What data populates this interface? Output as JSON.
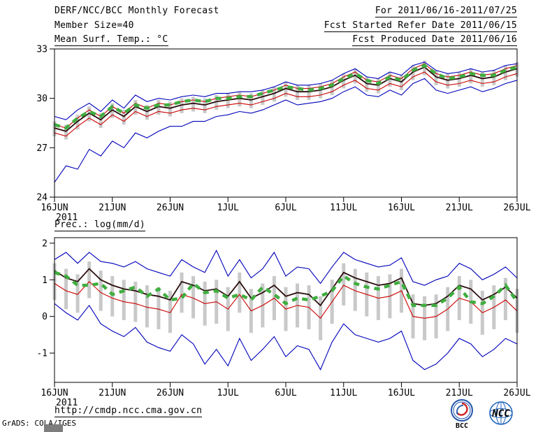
{
  "header": {
    "title": "DERF/NCC/BCC Monthly Forecast",
    "for_range": "For 2011/06/16-2011/07/25",
    "member_size": "Member Size=40",
    "refer_date": "Fcst Started Refer Date 2011/06/15",
    "produced_date": "Fcst Produced Date 2011/06/16"
  },
  "footer": {
    "url": "http://cmdp.ncc.cma.gov.cn",
    "credit": "GrADS: COLA/IGES",
    "bcc_label": "BCC",
    "ncc_label": "NCC"
  },
  "chart_data": [
    {
      "type": "line",
      "title": "Mean Surf. Temp.: °C",
      "x_tick_labels": [
        "16JUN",
        "21JUN",
        "26JUN",
        "1JUL",
        "6JUL",
        "11JUL",
        "16JUL",
        "21JUL",
        "26JUL"
      ],
      "x_tick_step": 5,
      "x_year_label": "2011",
      "ylim": [
        24,
        33
      ],
      "yticks": [
        24,
        27,
        30,
        33
      ],
      "grid": false,
      "bars": {
        "color": "#c9c9c9",
        "upper": [
          28.6,
          28.4,
          29.0,
          29.5,
          29.1,
          29.7,
          29.3,
          29.9,
          29.6,
          29.9,
          29.8,
          30.0,
          30.1,
          30.0,
          30.2,
          30.3,
          30.4,
          30.3,
          30.5,
          30.7,
          31.0,
          30.8,
          30.8,
          30.9,
          31.1,
          31.5,
          31.8,
          31.3,
          31.2,
          31.6,
          31.4,
          32.0,
          32.3,
          31.7,
          31.5,
          31.6,
          31.8,
          31.6,
          31.7,
          32.0,
          32.2
        ],
        "lower": [
          27.7,
          27.5,
          28.1,
          28.6,
          28.2,
          28.8,
          28.4,
          29.0,
          28.7,
          29.0,
          28.9,
          29.1,
          29.2,
          29.1,
          29.3,
          29.4,
          29.5,
          29.4,
          29.6,
          29.8,
          30.1,
          29.9,
          29.9,
          30.0,
          30.2,
          30.6,
          30.9,
          30.4,
          30.3,
          30.7,
          30.5,
          31.1,
          31.4,
          30.8,
          30.6,
          30.7,
          30.9,
          30.7,
          30.8,
          31.1,
          31.3
        ]
      },
      "series": [
        {
          "name": "ensemble-max",
          "color": "#0000bb",
          "width": 1.1,
          "values": [
            28.9,
            28.7,
            29.3,
            29.7,
            29.2,
            29.9,
            29.4,
            30.2,
            29.8,
            30.0,
            29.9,
            30.1,
            30.2,
            30.1,
            30.3,
            30.3,
            30.4,
            30.4,
            30.5,
            30.7,
            31.0,
            30.8,
            30.8,
            30.9,
            31.1,
            31.5,
            31.8,
            31.3,
            31.2,
            31.6,
            31.4,
            32.0,
            32.2,
            31.7,
            31.5,
            31.6,
            31.8,
            31.6,
            31.7,
            32.0,
            32.1
          ]
        },
        {
          "name": "plus-std",
          "color": "#cc0000",
          "width": 1.1,
          "values": [
            28.4,
            28.2,
            28.8,
            29.3,
            28.9,
            29.5,
            29.1,
            29.7,
            29.4,
            29.7,
            29.6,
            29.8,
            29.9,
            29.8,
            30.0,
            30.1,
            30.2,
            30.1,
            30.3,
            30.5,
            30.8,
            30.6,
            30.6,
            30.7,
            30.9,
            31.3,
            31.6,
            31.1,
            31.0,
            31.4,
            31.2,
            31.8,
            32.1,
            31.5,
            31.3,
            31.4,
            31.6,
            31.4,
            31.5,
            31.8,
            32.0
          ]
        },
        {
          "name": "ensemble-mean",
          "color": "#2b0d0d",
          "width": 1.8,
          "values": [
            28.2,
            28.0,
            28.6,
            29.1,
            28.7,
            29.3,
            28.9,
            29.5,
            29.2,
            29.5,
            29.4,
            29.6,
            29.7,
            29.6,
            29.8,
            29.9,
            30.0,
            29.9,
            30.1,
            30.3,
            30.6,
            30.4,
            30.4,
            30.5,
            30.7,
            31.1,
            31.4,
            30.9,
            30.8,
            31.2,
            31.0,
            31.6,
            31.9,
            31.3,
            31.1,
            31.2,
            31.4,
            31.2,
            31.3,
            31.6,
            31.8
          ]
        },
        {
          "name": "minus-std",
          "color": "#cc0000",
          "width": 1.1,
          "values": [
            27.9,
            27.7,
            28.3,
            28.8,
            28.4,
            29.0,
            28.6,
            29.2,
            28.9,
            29.2,
            29.1,
            29.3,
            29.4,
            29.3,
            29.5,
            29.6,
            29.7,
            29.6,
            29.8,
            30.0,
            30.3,
            30.1,
            30.1,
            30.2,
            30.4,
            30.8,
            31.1,
            30.6,
            30.5,
            30.9,
            30.7,
            31.3,
            31.6,
            31.0,
            30.8,
            30.9,
            31.1,
            30.9,
            31.0,
            31.3,
            31.5
          ]
        },
        {
          "name": "ensemble-min",
          "color": "#0000bb",
          "width": 1.1,
          "values": [
            24.9,
            25.9,
            25.7,
            26.9,
            26.5,
            27.4,
            27.0,
            27.9,
            27.6,
            28.0,
            28.3,
            28.3,
            28.6,
            28.6,
            28.9,
            29.0,
            29.2,
            29.1,
            29.3,
            29.6,
            29.9,
            29.6,
            29.7,
            29.8,
            30.0,
            30.4,
            30.7,
            30.2,
            30.1,
            30.5,
            30.2,
            30.9,
            31.2,
            30.5,
            30.3,
            30.5,
            30.7,
            30.4,
            30.6,
            30.9,
            31.1
          ]
        },
        {
          "name": "observation",
          "color": "#3fae3f",
          "width": 4.5,
          "dash": "8 7",
          "values": [
            28.4,
            28.2,
            28.8,
            29.2,
            28.9,
            29.5,
            29.1,
            29.6,
            29.4,
            29.6,
            29.6,
            29.8,
            29.9,
            29.8,
            30.0,
            30.0,
            30.1,
            30.1,
            30.3,
            30.5,
            30.7,
            30.6,
            30.5,
            30.6,
            30.8,
            31.2,
            31.5,
            31.1,
            30.9,
            31.3,
            31.1,
            31.7,
            32.0,
            31.5,
            31.2,
            31.3,
            31.5,
            31.4,
            31.4,
            31.7,
            31.9
          ]
        }
      ]
    },
    {
      "type": "line",
      "title": "Prec.: log(mm/d)",
      "x_tick_labels": [
        "16JUN",
        "21JUN",
        "26JUN",
        "1JUL",
        "6JUL",
        "11JUL",
        "16JUL",
        "21JUL",
        "26JUL"
      ],
      "x_tick_step": 5,
      "x_year_label": "2011",
      "ylim": [
        -1.8,
        2.15
      ],
      "yticks": [
        -1,
        0,
        1,
        2
      ],
      "grid": false,
      "bars": {
        "color": "#c9c9c9",
        "upper": [
          1.45,
          1.3,
          1.15,
          1.5,
          1.25,
          1.1,
          1.0,
          0.95,
          0.85,
          0.8,
          0.7,
          1.2,
          1.1,
          0.95,
          1.0,
          0.8,
          1.2,
          0.75,
          0.9,
          1.1,
          0.8,
          0.9,
          0.85,
          0.55,
          1.0,
          1.45,
          1.3,
          1.2,
          1.1,
          1.15,
          1.3,
          0.6,
          0.55,
          0.6,
          0.8,
          1.1,
          1.0,
          0.7,
          0.85,
          1.05,
          0.75
        ],
        "lower": [
          0.45,
          0.2,
          0.1,
          0.5,
          0.15,
          0.0,
          -0.1,
          -0.15,
          -0.3,
          -0.35,
          -0.45,
          0.1,
          -0.05,
          -0.25,
          -0.2,
          -0.4,
          0.1,
          -0.45,
          -0.3,
          -0.1,
          -0.4,
          -0.3,
          -0.35,
          -0.65,
          -0.2,
          0.3,
          0.15,
          0.0,
          -0.1,
          -0.05,
          0.1,
          -0.6,
          -0.65,
          -0.6,
          -0.4,
          -0.1,
          -0.2,
          -0.5,
          -0.35,
          -0.1,
          -0.45
        ]
      },
      "series": [
        {
          "name": "ensemble-max",
          "color": "#0000bb",
          "width": 1.1,
          "values": [
            1.55,
            1.75,
            1.45,
            1.75,
            1.5,
            1.45,
            1.35,
            1.5,
            1.3,
            1.2,
            1.1,
            1.55,
            1.35,
            1.2,
            1.8,
            1.1,
            1.55,
            1.05,
            1.3,
            1.75,
            1.1,
            1.35,
            1.3,
            0.9,
            1.35,
            1.75,
            1.55,
            1.45,
            1.35,
            1.4,
            1.6,
            0.95,
            0.85,
            1.0,
            1.1,
            1.45,
            1.3,
            1.0,
            1.15,
            1.35,
            1.05
          ]
        },
        {
          "name": "ensemble-mean",
          "color": "#2b0d0d",
          "width": 1.8,
          "values": [
            1.25,
            1.05,
            0.95,
            1.3,
            1.0,
            0.85,
            0.75,
            0.7,
            0.6,
            0.55,
            0.45,
            0.95,
            0.85,
            0.7,
            0.75,
            0.55,
            0.95,
            0.5,
            0.65,
            0.85,
            0.55,
            0.65,
            0.6,
            0.3,
            0.75,
            1.2,
            1.05,
            0.95,
            0.85,
            0.9,
            1.05,
            0.35,
            0.3,
            0.35,
            0.55,
            0.85,
            0.75,
            0.45,
            0.6,
            0.8,
            0.5
          ]
        },
        {
          "name": "minus-std",
          "color": "#cc0000",
          "width": 1.1,
          "values": [
            0.9,
            0.7,
            0.6,
            0.95,
            0.65,
            0.5,
            0.4,
            0.35,
            0.25,
            0.2,
            0.1,
            0.6,
            0.5,
            0.35,
            0.4,
            0.2,
            0.6,
            0.15,
            0.3,
            0.5,
            0.2,
            0.3,
            0.25,
            -0.05,
            0.4,
            0.85,
            0.7,
            0.6,
            0.5,
            0.55,
            0.7,
            0.0,
            -0.05,
            0.0,
            0.2,
            0.5,
            0.4,
            0.1,
            0.25,
            0.45,
            0.15
          ]
        },
        {
          "name": "ensemble-min",
          "color": "#0000bb",
          "width": 1.1,
          "values": [
            0.35,
            0.1,
            -0.1,
            0.3,
            -0.2,
            -0.4,
            -0.55,
            -0.3,
            -0.7,
            -0.85,
            -0.95,
            -0.5,
            -0.75,
            -1.3,
            -0.9,
            -1.35,
            -0.6,
            -1.2,
            -0.9,
            -0.55,
            -1.1,
            -0.8,
            -0.9,
            -1.45,
            -0.7,
            -0.2,
            -0.5,
            -0.6,
            -0.7,
            -0.6,
            -0.4,
            -1.2,
            -1.45,
            -1.3,
            -1.0,
            -0.6,
            -0.75,
            -1.1,
            -0.9,
            -0.6,
            -0.75
          ]
        },
        {
          "name": "observation",
          "color": "#3fae3f",
          "width": 4.5,
          "dash": "8 7",
          "values": [
            1.2,
            1.1,
            0.85,
            0.85,
            0.9,
            0.6,
            0.7,
            0.8,
            0.55,
            0.75,
            0.45,
            0.5,
            0.9,
            0.65,
            0.7,
            0.5,
            0.6,
            0.45,
            0.8,
            0.6,
            0.35,
            0.5,
            0.45,
            0.55,
            0.7,
            1.1,
            0.9,
            0.8,
            0.75,
            0.85,
            0.95,
            0.3,
            0.3,
            0.3,
            0.5,
            0.8,
            0.4,
            0.35,
            0.55,
            0.85,
            0.4
          ]
        }
      ]
    }
  ]
}
